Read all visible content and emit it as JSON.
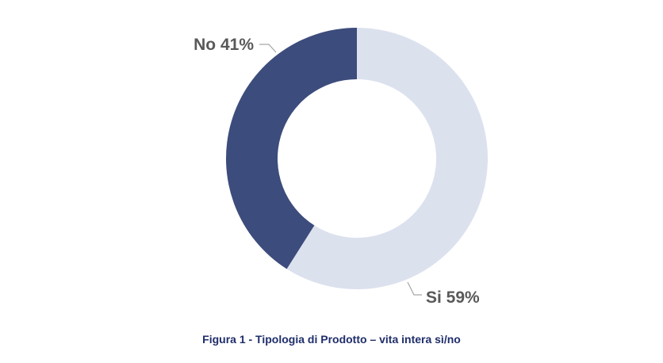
{
  "chart_data": {
    "type": "pie",
    "variant": "donut",
    "categories": [
      "Si",
      "No"
    ],
    "values": [
      59,
      41
    ],
    "data_labels": [
      "Si 59%",
      "No 41%"
    ],
    "colors": {
      "Si": "#dce1ee",
      "No": "#3c4c7c"
    },
    "label_color": "#595959",
    "leader_color": "#a6a6a6",
    "legend": "none"
  },
  "caption": "Figura 1 - Tipologia di Prodotto – vita intera sì/no",
  "caption_color": "#1f2e6b"
}
